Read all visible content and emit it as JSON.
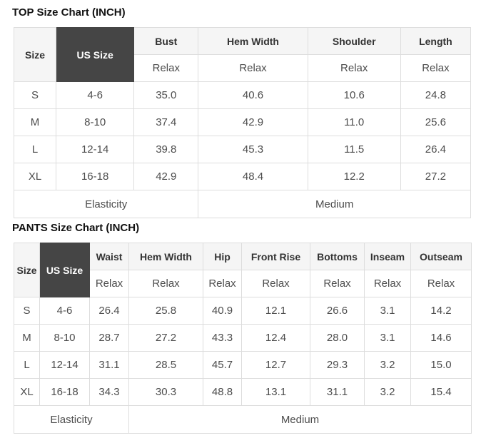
{
  "colors": {
    "dark_header_bg": "#454545",
    "dark_header_text": "#ffffff",
    "light_header_bg": "#f5f5f5",
    "border": "#dddddd",
    "body_text": "#4d4d4d"
  },
  "chart_data": [
    {
      "type": "table",
      "title": "TOP Size Chart (INCH)",
      "columns": [
        "Size",
        "US Size",
        "Bust",
        "Hem Width",
        "Shoulder",
        "Length"
      ],
      "sub_header_label": "Relax",
      "rows": [
        [
          "S",
          "4-6",
          "35.0",
          "40.6",
          "10.6",
          "24.8"
        ],
        [
          "M",
          "8-10",
          "37.4",
          "42.9",
          "11.0",
          "25.6"
        ],
        [
          "L",
          "12-14",
          "39.8",
          "45.3",
          "11.5",
          "26.4"
        ],
        [
          "XL",
          "16-18",
          "42.9",
          "48.4",
          "12.2",
          "27.2"
        ]
      ],
      "footer": {
        "label": "Elasticity",
        "value": "Medium",
        "label_span": 3
      }
    },
    {
      "type": "table",
      "title": "PANTS Size Chart (INCH)",
      "columns": [
        "Size",
        "US Size",
        "Waist",
        "Hem Width",
        "Hip",
        "Front Rise",
        "Bottoms",
        "Inseam",
        "Outseam"
      ],
      "sub_header_label": "Relax",
      "rows": [
        [
          "S",
          "4-6",
          "26.4",
          "25.8",
          "40.9",
          "12.1",
          "26.6",
          "3.1",
          "14.2"
        ],
        [
          "M",
          "8-10",
          "28.7",
          "27.2",
          "43.3",
          "12.4",
          "28.0",
          "3.1",
          "14.6"
        ],
        [
          "L",
          "12-14",
          "31.1",
          "28.5",
          "45.7",
          "12.7",
          "29.3",
          "3.2",
          "15.0"
        ],
        [
          "XL",
          "16-18",
          "34.3",
          "30.3",
          "48.8",
          "13.1",
          "31.1",
          "3.2",
          "15.4"
        ]
      ],
      "footer": {
        "label": "Elasticity",
        "value": "Medium",
        "label_span": 3
      }
    }
  ]
}
